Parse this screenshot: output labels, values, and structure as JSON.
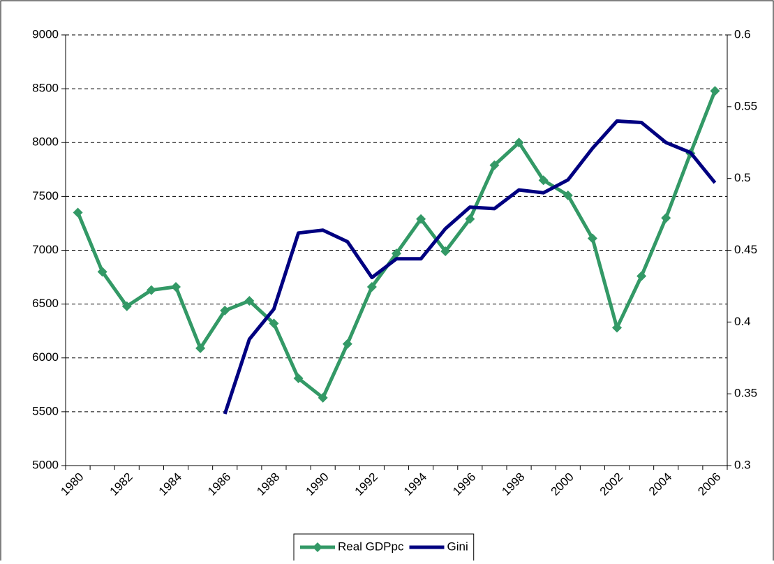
{
  "chart_data": {
    "type": "line",
    "categories": [
      "1980",
      null,
      "1982",
      null,
      "1984",
      null,
      "1986",
      null,
      "1988",
      null,
      "1990",
      null,
      "1992",
      null,
      "1994",
      null,
      "1996",
      null,
      "1998",
      null,
      "2000",
      null,
      "2002",
      null,
      "2004",
      null,
      "2006"
    ],
    "series": [
      {
        "name": "Real GDPpc",
        "color": "#339966",
        "marker": "diamond",
        "values": [
          7350,
          6800,
          6480,
          6630,
          6660,
          6090,
          6440,
          6530,
          6320,
          5810,
          5630,
          6130,
          6660,
          6970,
          7290,
          6990,
          7290,
          7790,
          8000,
          7650,
          7510,
          7110,
          6280,
          6760,
          7300,
          7900,
          8480
        ]
      },
      {
        "name": "Gini",
        "color": "#000080",
        "axis": "y2",
        "values": [
          null,
          null,
          null,
          null,
          null,
          null,
          0.336,
          0.388,
          0.409,
          0.462,
          0.464,
          0.456,
          0.431,
          0.444,
          0.444,
          0.465,
          0.48,
          0.479,
          0.492,
          0.49,
          0.499,
          0.521,
          0.54,
          0.539,
          0.525,
          0.518,
          0.497
        ]
      }
    ],
    "ylim": [
      5000,
      9000
    ],
    "yticks": [
      5000,
      5500,
      6000,
      6500,
      7000,
      7500,
      8000,
      8500,
      9000
    ],
    "y2lim": [
      0.3,
      0.6
    ],
    "y2ticks": [
      0.3,
      0.35,
      0.4,
      0.45,
      0.5,
      0.55,
      0.6
    ],
    "grid": true,
    "legend": "bottom"
  }
}
